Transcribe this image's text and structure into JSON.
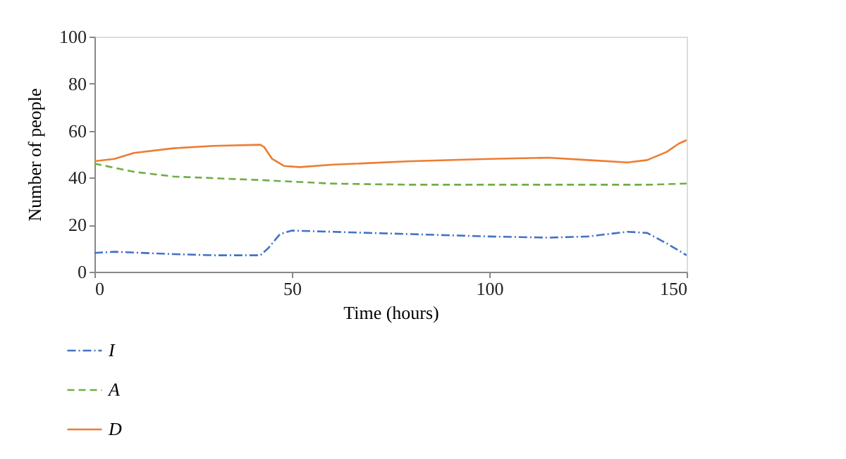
{
  "chart_data": {
    "type": "line",
    "xlabel": "Time (hours)",
    "ylabel": "Number of people",
    "xlim": [
      0,
      150
    ],
    "ylim": [
      0,
      100
    ],
    "xticks": [
      0,
      50,
      100,
      150
    ],
    "yticks": [
      0,
      20,
      40,
      60,
      80,
      100
    ],
    "grid": false,
    "legend": "bottom left",
    "marker": "none",
    "series": [
      {
        "name": "I",
        "color": "#4472c4",
        "line_style": "dashdot",
        "x": [
          0,
          5,
          20,
          30,
          42,
          44,
          47,
          50,
          60,
          80,
          100,
          115,
          125,
          135,
          140,
          145,
          150
        ],
        "values": [
          8,
          8.5,
          7.5,
          7,
          7,
          10,
          16,
          17.5,
          17,
          16,
          15,
          14.5,
          15,
          17,
          16.5,
          12,
          7
        ]
      },
      {
        "name": "A",
        "color": "#70ad47",
        "line_style": "dashed",
        "x": [
          0,
          10,
          20,
          30,
          42,
          60,
          80,
          100,
          125,
          140,
          150
        ],
        "values": [
          46,
          42.5,
          40.5,
          39.8,
          39,
          37.5,
          37,
          37,
          37,
          37,
          37.5
        ]
      },
      {
        "name": "D",
        "color": "#ed7d31",
        "line_style": "solid",
        "x": [
          0,
          5,
          10,
          20,
          30,
          42,
          43,
          45,
          48,
          52,
          60,
          80,
          100,
          115,
          125,
          135,
          140,
          145,
          148,
          150
        ],
        "values": [
          47,
          48,
          50.5,
          52.5,
          53.5,
          54,
          53,
          48,
          45,
          44.5,
          45.5,
          47,
          48,
          48.5,
          47.5,
          46.5,
          47.5,
          51,
          54.5,
          56
        ]
      }
    ]
  }
}
